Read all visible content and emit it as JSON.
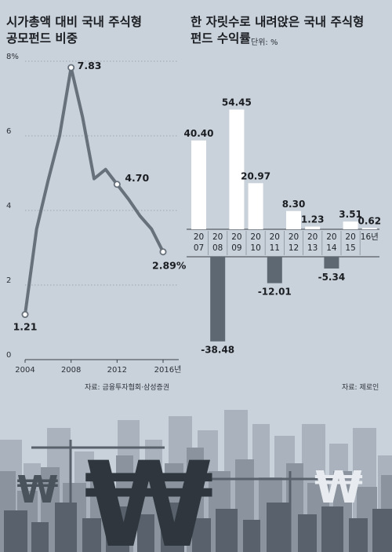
{
  "chart_data": [
    {
      "type": "line",
      "title": [
        "시가총액 대비 국내 주식형",
        "공모펀드 비중"
      ],
      "x": [
        2004,
        2005,
        2006,
        2007,
        2008,
        2009,
        2010,
        2011,
        2012,
        2013,
        2014,
        2015,
        2016
      ],
      "values": [
        1.21,
        3.5,
        4.8,
        6.0,
        7.83,
        6.5,
        4.85,
        5.1,
        4.7,
        4.3,
        3.85,
        3.5,
        2.89
      ],
      "labels": [
        {
          "x": 2004,
          "text": "1.21"
        },
        {
          "x": 2008,
          "text": "7.83"
        },
        {
          "x": 2012,
          "text": "4.70"
        },
        {
          "x": 2016,
          "text": "2.89%"
        }
      ],
      "xticks": [
        "2004",
        "2008",
        "2012",
        "2016년"
      ],
      "yticks": [
        "0",
        "2",
        "4",
        "6",
        "8%"
      ],
      "ylim": [
        0,
        8
      ],
      "grid": true,
      "source": "자료: 금융투자협회·삼성증권"
    },
    {
      "type": "bar",
      "title": [
        "한 자릿수로 내려앉은 국내 주식형",
        "펀드 수익률"
      ],
      "unit": "단위: %",
      "categories": [
        "2007",
        "2008",
        "2009",
        "2010",
        "2011",
        "2012",
        "2013",
        "2014",
        "2015",
        "2016"
      ],
      "category_labels": [
        [
          "20",
          "07"
        ],
        [
          "20",
          "08"
        ],
        [
          "20",
          "09"
        ],
        [
          "20",
          "10"
        ],
        [
          "20",
          "11"
        ],
        [
          "20",
          "12"
        ],
        [
          "20",
          "13"
        ],
        [
          "20",
          "14"
        ],
        [
          "20",
          "15"
        ],
        [
          "16년"
        ]
      ],
      "values": [
        40.4,
        -38.48,
        54.45,
        20.97,
        -12.01,
        8.3,
        1.23,
        -5.34,
        3.51,
        0.62
      ],
      "value_labels": [
        "40.40",
        "-38.48",
        "54.45",
        "20.97",
        "-12.01",
        "8.30",
        "1.23",
        "-5.34",
        "3.51",
        "0.62"
      ],
      "source": "자료: 제로인"
    }
  ],
  "colors": {
    "background": "#c9d1da",
    "line": "#67717b",
    "positive_bar": "#ffffff",
    "negative_bar": "#5d6873",
    "grid": "#8e97a1",
    "city_dark": "#59626c",
    "city_mid": "#8b949e",
    "city_light": "#aab3bd",
    "won_sign": "#2f363d"
  },
  "decoration": {
    "won_symbol": "₩"
  }
}
